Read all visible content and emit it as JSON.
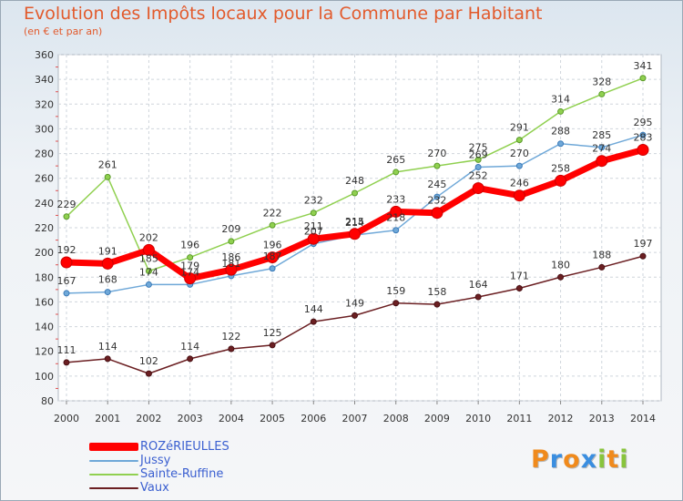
{
  "header": {
    "title": "Evolution des Impôts locaux pour la Commune par Habitant",
    "subtitle": "(en € et par an)"
  },
  "chart_data": {
    "type": "line",
    "title": "Evolution des Impôts locaux pour la Commune par Habitant",
    "subtitle": "(en € et par an)",
    "xlabel": "",
    "ylabel": "",
    "x": [
      "2000",
      "2001",
      "2002",
      "2003",
      "2004",
      "2005",
      "2006",
      "2007",
      "2008",
      "2009",
      "2010",
      "2011",
      "2012",
      "2013",
      "2014"
    ],
    "ylim": [
      80,
      360
    ],
    "yticks": [
      80,
      100,
      120,
      140,
      160,
      180,
      200,
      220,
      240,
      260,
      280,
      300,
      320,
      340,
      360
    ],
    "grid": true,
    "legend": "bottom-left",
    "series": [
      {
        "name": "ROZéRIEULLES",
        "color": "#ff0000",
        "values": [
          192,
          191,
          202,
          179,
          186,
          196,
          211,
          215,
          233,
          232,
          252,
          246,
          258,
          274,
          283
        ],
        "labels": [
          "192",
          "191",
          "202",
          "179",
          "186",
          "196",
          "211",
          "215",
          "233",
          "232",
          "252",
          "246",
          "258",
          "274",
          "283"
        ]
      },
      {
        "name": "Jussy",
        "color": "#6fa8d8",
        "values": [
          167,
          168,
          174,
          174,
          181,
          187,
          207,
          214,
          218,
          245,
          269,
          270,
          288,
          285,
          295
        ],
        "labels": [
          "167",
          "168",
          "174",
          "174",
          "181",
          "187",
          "207",
          "214",
          "218",
          "245",
          "269",
          "270",
          "288",
          "285",
          "295"
        ]
      },
      {
        "name": "Sainte-Ruffine",
        "color": "#90d050",
        "values": [
          229,
          261,
          185,
          196,
          209,
          222,
          232,
          248,
          265,
          270,
          275,
          291,
          314,
          328,
          341
        ],
        "labels": [
          "229",
          "261",
          "185",
          "196",
          "209",
          "222",
          "232",
          "248",
          "265",
          "270",
          "275",
          "291",
          "314",
          "328",
          "341"
        ]
      },
      {
        "name": "Vaux",
        "color": "#6b1f22",
        "values": [
          111,
          114,
          102,
          114,
          122,
          125,
          144,
          149,
          159,
          158,
          164,
          171,
          180,
          188,
          197
        ],
        "labels": [
          "111",
          "114",
          "102",
          "114",
          "122",
          "125",
          "144",
          "149",
          "159",
          "158",
          "164",
          "171",
          "180",
          "188",
          "197"
        ]
      }
    ]
  },
  "logo": {
    "letters": [
      "P",
      "r",
      "o",
      "x",
      "i",
      "t",
      "i"
    ],
    "colors": [
      "#f08a1c",
      "#3a8ee0",
      "#f08a1c",
      "#3a8ee0",
      "#88c43c",
      "#f08a1c",
      "#88c43c"
    ]
  }
}
